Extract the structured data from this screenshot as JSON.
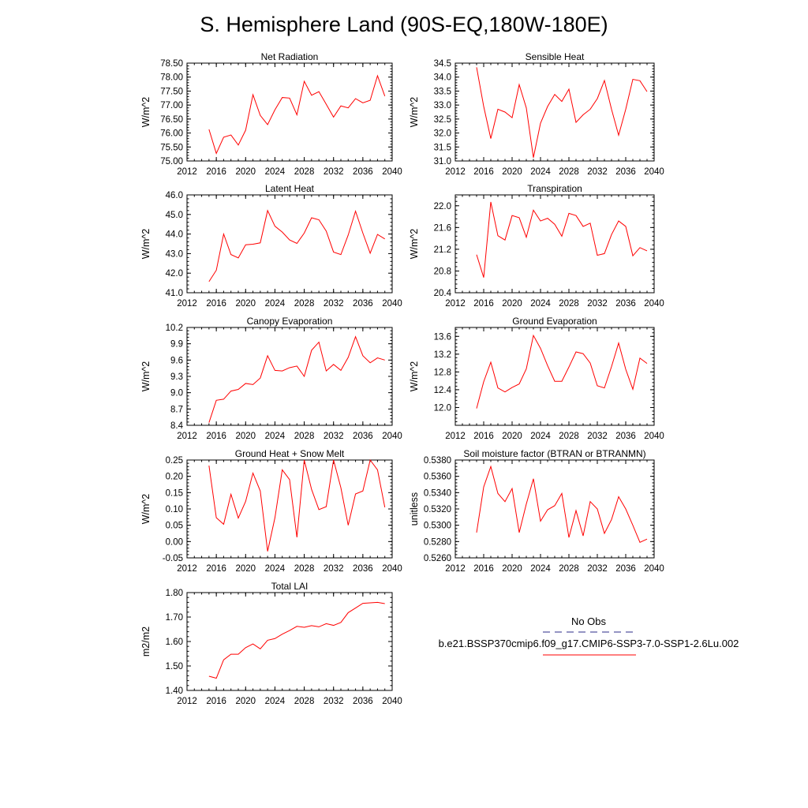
{
  "title": "S. Hemisphere Land (90S-EQ,180W-180E)",
  "legend": {
    "obs_label": "No Obs",
    "obs_color": "#2a2a8a",
    "model_label": "b.e21.BSSP370cmip6.f09_g17.CMIP6-SSP3-7.0-SSP1-2.6Lu.002",
    "model_color": "#ff0000"
  },
  "chart_data": [
    {
      "type": "line",
      "title": "Net Radiation",
      "ylabel": "W/m^2",
      "xlim": [
        2012,
        2040
      ],
      "xticks": [
        "2012",
        "2016",
        "2020",
        "2024",
        "2028",
        "2032",
        "2036",
        "2040"
      ],
      "ylim": [
        75.0,
        78.5
      ],
      "yticks": [
        "75.00",
        "75.50",
        "76.00",
        "76.50",
        "77.00",
        "77.50",
        "78.00",
        "78.50"
      ],
      "series": [
        {
          "color": "#ff0000",
          "x": [
            2015,
            2016,
            2017,
            2018,
            2019,
            2020,
            2021,
            2022,
            2023,
            2024,
            2025,
            2026,
            2027,
            2028,
            2029,
            2030,
            2031,
            2032,
            2033,
            2034,
            2035,
            2036,
            2037,
            2038,
            2039
          ],
          "y": [
            76.13,
            75.27,
            75.85,
            75.93,
            75.57,
            76.1,
            77.37,
            76.63,
            76.3,
            76.83,
            77.27,
            77.25,
            76.65,
            77.85,
            77.35,
            77.48,
            77.03,
            76.57,
            76.97,
            76.9,
            77.23,
            77.08,
            77.17,
            78.05,
            77.32
          ]
        }
      ]
    },
    {
      "type": "line",
      "title": "Sensible Heat",
      "ylabel": "W/m^2",
      "xlim": [
        2012,
        2040
      ],
      "xticks": [
        "2012",
        "2016",
        "2020",
        "2024",
        "2028",
        "2032",
        "2036",
        "2040"
      ],
      "ylim": [
        31.0,
        34.5
      ],
      "yticks": [
        "31.0",
        "31.5",
        "32.0",
        "32.5",
        "33.0",
        "33.5",
        "34.0",
        "34.5"
      ],
      "series": [
        {
          "color": "#ff0000",
          "x": [
            2015,
            2016,
            2017,
            2018,
            2019,
            2020,
            2021,
            2022,
            2023,
            2024,
            2025,
            2026,
            2027,
            2028,
            2029,
            2030,
            2031,
            2032,
            2033,
            2034,
            2035,
            2036,
            2037,
            2038,
            2039
          ],
          "y": [
            34.35,
            32.95,
            31.8,
            32.85,
            32.75,
            32.55,
            33.73,
            32.9,
            31.12,
            32.35,
            32.95,
            33.38,
            33.13,
            33.57,
            32.38,
            32.65,
            32.85,
            33.23,
            33.88,
            32.85,
            31.92,
            32.85,
            33.92,
            33.87,
            33.48
          ]
        }
      ]
    },
    {
      "type": "line",
      "title": "Latent Heat",
      "ylabel": "W/m^2",
      "xlim": [
        2012,
        2040
      ],
      "xticks": [
        "2012",
        "2016",
        "2020",
        "2024",
        "2028",
        "2032",
        "2036",
        "2040"
      ],
      "ylim": [
        41.0,
        46.0
      ],
      "yticks": [
        "41.0",
        "42.0",
        "43.0",
        "44.0",
        "45.0",
        "46.0"
      ],
      "series": [
        {
          "color": "#ff0000",
          "x": [
            2015,
            2016,
            2017,
            2018,
            2019,
            2020,
            2021,
            2022,
            2023,
            2024,
            2025,
            2026,
            2027,
            2028,
            2029,
            2030,
            2031,
            2032,
            2033,
            2034,
            2035,
            2036,
            2037,
            2038,
            2039
          ],
          "y": [
            41.57,
            42.15,
            44.0,
            42.95,
            42.78,
            43.45,
            43.48,
            43.55,
            45.2,
            44.4,
            44.1,
            43.7,
            43.52,
            44.05,
            44.83,
            44.73,
            44.15,
            43.08,
            42.95,
            43.95,
            45.17,
            44.05,
            43.02,
            43.98,
            43.75
          ]
        }
      ]
    },
    {
      "type": "line",
      "title": "Transpiration",
      "ylabel": "W/m^2",
      "xlim": [
        2012,
        2040
      ],
      "xticks": [
        "2012",
        "2016",
        "2020",
        "2024",
        "2028",
        "2032",
        "2036",
        "2040"
      ],
      "ylim": [
        20.4,
        22.2
      ],
      "yticks": [
        "20.4",
        "20.8",
        "21.2",
        "21.6",
        "22.0"
      ],
      "series": [
        {
          "color": "#ff0000",
          "x": [
            2015,
            2016,
            2017,
            2018,
            2019,
            2020,
            2021,
            2022,
            2023,
            2024,
            2025,
            2026,
            2027,
            2028,
            2029,
            2030,
            2031,
            2032,
            2033,
            2034,
            2035,
            2036,
            2037,
            2038,
            2039
          ],
          "y": [
            21.1,
            20.68,
            22.07,
            21.45,
            21.37,
            21.82,
            21.78,
            21.42,
            21.92,
            21.72,
            21.77,
            21.66,
            21.44,
            21.86,
            21.82,
            21.62,
            21.68,
            21.09,
            21.12,
            21.47,
            21.72,
            21.62,
            21.08,
            21.23,
            21.17
          ]
        }
      ]
    },
    {
      "type": "line",
      "title": "Canopy Evaporation",
      "ylabel": "W/m^2",
      "xlim": [
        2012,
        2040
      ],
      "xticks": [
        "2012",
        "2016",
        "2020",
        "2024",
        "2028",
        "2032",
        "2036",
        "2040"
      ],
      "ylim": [
        8.4,
        10.2
      ],
      "yticks": [
        "8.4",
        "8.7",
        "9.0",
        "9.3",
        "9.6",
        "9.9",
        "10.2"
      ],
      "series": [
        {
          "color": "#ff0000",
          "x": [
            2015,
            2016,
            2017,
            2018,
            2019,
            2020,
            2021,
            2022,
            2023,
            2024,
            2025,
            2026,
            2027,
            2028,
            2029,
            2030,
            2031,
            2032,
            2033,
            2034,
            2035,
            2036,
            2037,
            2038,
            2039
          ],
          "y": [
            8.45,
            8.86,
            8.88,
            9.03,
            9.06,
            9.17,
            9.15,
            9.27,
            9.68,
            9.41,
            9.4,
            9.46,
            9.49,
            9.3,
            9.78,
            9.93,
            9.4,
            9.52,
            9.41,
            9.65,
            10.03,
            9.68,
            9.55,
            9.64,
            9.6
          ]
        }
      ]
    },
    {
      "type": "line",
      "title": "Ground Evaporation",
      "ylabel": "W/m^2",
      "xlim": [
        2012,
        2040
      ],
      "xticks": [
        "2012",
        "2016",
        "2020",
        "2024",
        "2028",
        "2032",
        "2036",
        "2040"
      ],
      "ylim": [
        11.6,
        13.8
      ],
      "yticks": [
        "12.0",
        "12.4",
        "12.8",
        "13.2",
        "13.6"
      ],
      "series": [
        {
          "color": "#ff0000",
          "x": [
            2015,
            2016,
            2017,
            2018,
            2019,
            2020,
            2021,
            2022,
            2023,
            2024,
            2025,
            2026,
            2027,
            2028,
            2029,
            2030,
            2031,
            2032,
            2033,
            2034,
            2035,
            2036,
            2037,
            2038,
            2039
          ],
          "y": [
            11.98,
            12.58,
            13.02,
            12.44,
            12.35,
            12.45,
            12.53,
            12.87,
            13.62,
            13.33,
            12.94,
            12.59,
            12.59,
            12.91,
            13.25,
            13.21,
            13.0,
            12.49,
            12.44,
            12.92,
            13.45,
            12.86,
            12.41,
            13.11,
            12.99
          ]
        }
      ]
    },
    {
      "type": "line",
      "title": "Ground Heat + Snow Melt",
      "ylabel": "W/m^2",
      "xlim": [
        2012,
        2040
      ],
      "xticks": [
        "2012",
        "2016",
        "2020",
        "2024",
        "2028",
        "2032",
        "2036",
        "2040"
      ],
      "ylim": [
        -0.05,
        0.25
      ],
      "yticks": [
        "-0.05",
        "0.00",
        "0.05",
        "0.10",
        "0.15",
        "0.20",
        "0.25"
      ],
      "series": [
        {
          "color": "#ff0000",
          "x": [
            2015,
            2016,
            2017,
            2018,
            2019,
            2020,
            2021,
            2022,
            2023,
            2024,
            2025,
            2026,
            2027,
            2028,
            2029,
            2030,
            2031,
            2032,
            2033,
            2034,
            2035,
            2036,
            2037,
            2038,
            2039
          ],
          "y": [
            0.233,
            0.073,
            0.053,
            0.145,
            0.072,
            0.123,
            0.21,
            0.155,
            -0.03,
            0.073,
            0.22,
            0.19,
            0.013,
            0.25,
            0.16,
            0.098,
            0.107,
            0.25,
            0.165,
            0.05,
            0.146,
            0.155,
            0.25,
            0.22,
            0.105
          ]
        }
      ]
    },
    {
      "type": "line",
      "title": "Soil moisture factor (BTRAN or BTRANMN)",
      "ylabel": "unitless",
      "xlim": [
        2012,
        2040
      ],
      "xticks": [
        "2012",
        "2016",
        "2020",
        "2024",
        "2028",
        "2032",
        "2036",
        "2040"
      ],
      "ylim": [
        0.526,
        0.538
      ],
      "yticks": [
        "0.5260",
        "0.5280",
        "0.5300",
        "0.5320",
        "0.5340",
        "0.5360",
        "0.5380"
      ],
      "series": [
        {
          "color": "#ff0000",
          "x": [
            2015,
            2016,
            2017,
            2018,
            2019,
            2020,
            2021,
            2022,
            2023,
            2024,
            2025,
            2026,
            2027,
            2028,
            2029,
            2030,
            2031,
            2032,
            2033,
            2034,
            2035,
            2036,
            2037,
            2038,
            2039
          ],
          "y": [
            0.5291,
            0.5347,
            0.5372,
            0.5339,
            0.5329,
            0.5345,
            0.5291,
            0.5326,
            0.5357,
            0.5305,
            0.5319,
            0.5324,
            0.5339,
            0.5285,
            0.5318,
            0.5287,
            0.5329,
            0.532,
            0.529,
            0.5307,
            0.5335,
            0.532,
            0.53,
            0.5279,
            0.5283
          ]
        }
      ]
    },
    {
      "type": "line",
      "title": "Total LAI",
      "ylabel": "m2/m2",
      "xlim": [
        2012,
        2040
      ],
      "xticks": [
        "2012",
        "2016",
        "2020",
        "2024",
        "2028",
        "2032",
        "2036",
        "2040"
      ],
      "ylim": [
        1.4,
        1.8
      ],
      "yticks": [
        "1.40",
        "1.50",
        "1.60",
        "1.70",
        "1.80"
      ],
      "series": [
        {
          "color": "#ff0000",
          "x": [
            2015,
            2016,
            2017,
            2018,
            2019,
            2020,
            2021,
            2022,
            2023,
            2024,
            2025,
            2026,
            2027,
            2028,
            2029,
            2030,
            2031,
            2032,
            2033,
            2034,
            2035,
            2036,
            2037,
            2038,
            2039
          ],
          "y": [
            1.458,
            1.45,
            1.525,
            1.548,
            1.548,
            1.575,
            1.59,
            1.57,
            1.605,
            1.612,
            1.63,
            1.645,
            1.662,
            1.658,
            1.665,
            1.66,
            1.673,
            1.666,
            1.678,
            1.718,
            1.737,
            1.756,
            1.758,
            1.76,
            1.755
          ]
        }
      ]
    }
  ]
}
